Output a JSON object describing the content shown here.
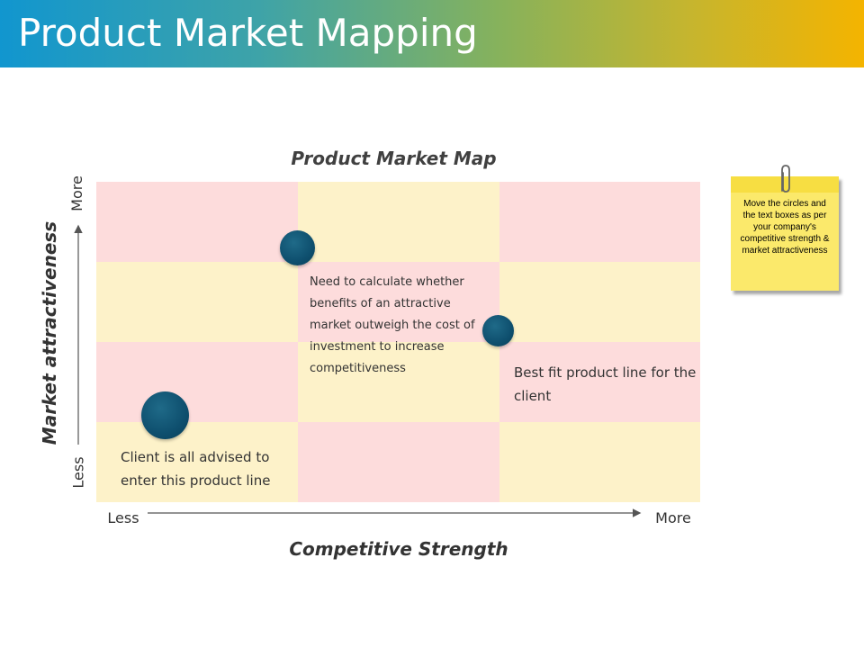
{
  "slide": {
    "title": "Product Market Mapping"
  },
  "map": {
    "title": "Product Market Map",
    "x_axis": {
      "label": "Competitive Strength",
      "low": "Less",
      "high": "More"
    },
    "y_axis": {
      "label": "Market attractiveness",
      "low": "Less",
      "high": "More"
    },
    "grid": {
      "columns": 3,
      "rows": 4,
      "pattern": [
        [
          "pink",
          "cream",
          "pink"
        ],
        [
          "cream",
          "pink",
          "cream"
        ],
        [
          "pink",
          "cream",
          "pink"
        ],
        [
          "cream",
          "pink",
          "cream"
        ]
      ]
    },
    "notes": {
      "middle": "Need to calculate whether benefits of an attractive market outweigh the cost of investment to increase competitiveness",
      "right": "Best fit product line for the client",
      "left": "Client is all advised to enter this product line"
    }
  },
  "sticky_note": {
    "text": "Move the circles and the text boxes as per your company's competitive strength & market attractiveness"
  },
  "colors": {
    "pink": "#fddcdc",
    "cream": "#fdf2c9",
    "bubble": "#0e4f6e",
    "sticky": "#fbe96b"
  }
}
